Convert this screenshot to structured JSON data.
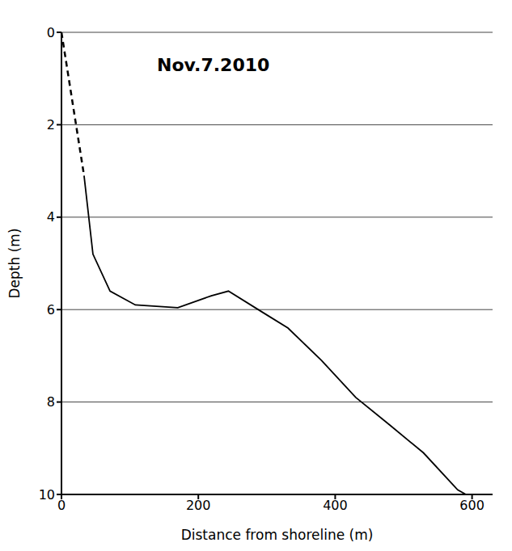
{
  "chart_data": {
    "type": "line",
    "title": "Nov.7.2010",
    "x_label": "Distance from shoreline (m)",
    "y_label": "Depth (m)",
    "x": [
      0,
      33,
      46,
      71,
      108,
      170,
      219,
      244,
      294,
      331,
      380,
      430,
      480,
      529,
      579,
      591
    ],
    "series": [
      {
        "color": "#000000",
        "line_style": "dashed",
        "values": [
          0,
          3.1,
          null,
          null,
          null,
          null,
          null,
          null,
          null,
          null,
          null,
          null,
          null,
          null,
          null,
          null
        ]
      },
      {
        "color": "#000000",
        "line_style": "solid",
        "values": [
          null,
          3.1,
          4.8,
          5.6,
          5.9,
          5.96,
          5.7,
          5.6,
          6.06,
          6.4,
          7.1,
          7.9,
          8.5,
          9.1,
          9.9,
          10
        ]
      }
    ],
    "xlim": [
      0,
      630
    ],
    "ylim": [
      0,
      10
    ],
    "xticks": [
      0,
      200,
      400,
      600
    ],
    "yticks": [
      0,
      2,
      4,
      6,
      8,
      10
    ],
    "grid": true
  }
}
